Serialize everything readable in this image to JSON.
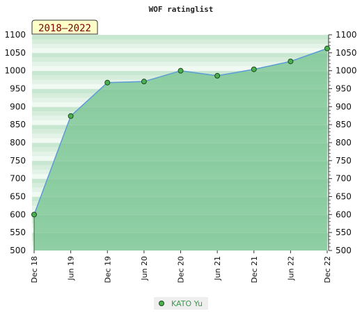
{
  "chart_data": {
    "type": "area",
    "title": "WOF ratinglist",
    "range_badge": "2018–2022",
    "categories": [
      "Dec 18",
      "Jun 19",
      "Dec 19",
      "Jun 20",
      "Dec 20",
      "Jun 21",
      "Dec 21",
      "Jun 22",
      "Dec 22"
    ],
    "series": [
      {
        "name": "KATO Yu",
        "values": [
          600,
          874,
          967,
          970,
          1000,
          986,
          1004,
          1026,
          1062
        ]
      }
    ],
    "ylim": [
      500,
      1100
    ],
    "yticks": [
      500,
      550,
      600,
      650,
      700,
      750,
      800,
      850,
      900,
      950,
      1000,
      1050,
      1100
    ],
    "xlabel": "",
    "ylabel": "",
    "grid": false,
    "legend": "bottom-center",
    "colors": {
      "line": "#5b9bd5",
      "marker_fill": "#4caf50",
      "marker_stroke": "#1b4a1b",
      "area_fill": "#7fc796",
      "band_dark": "#c9e8d2",
      "band_light": "#e6f5ea",
      "badge_fill": "#ffffc8",
      "legend_bg": "#eeeeee"
    }
  }
}
